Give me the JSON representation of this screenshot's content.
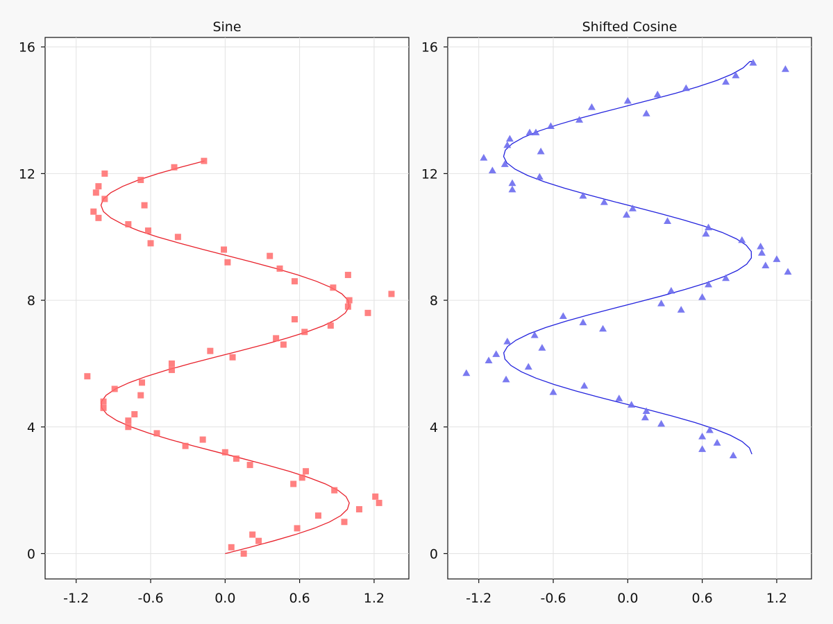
{
  "chart_data": [
    {
      "type": "scatter",
      "title": "Sine",
      "xlabel": "",
      "ylabel": "",
      "xlim": [
        -1.45,
        1.48
      ],
      "ylim": [
        -0.8,
        16.3
      ],
      "xticks": [
        -1.2,
        -0.6,
        0.0,
        0.6,
        1.2
      ],
      "xtick_labels": [
        "-1.2",
        "-0.6",
        "0.0",
        "0.6",
        "1.2"
      ],
      "yticks": [
        0,
        4,
        8,
        12,
        16
      ],
      "ytick_labels": [
        "0",
        "4",
        "8",
        "12",
        "16"
      ],
      "grid": true,
      "line": {
        "name": "sin curve",
        "color": "#e8202a",
        "x": [
          0.0,
          0.199,
          0.389,
          0.565,
          0.717,
          0.841,
          0.932,
          0.985,
          1.0,
          0.974,
          0.909,
          0.808,
          0.675,
          0.516,
          0.335,
          0.141,
          -0.058,
          -0.256,
          -0.443,
          -0.612,
          -0.757,
          -0.872,
          -0.952,
          -0.994,
          -0.996,
          -0.959,
          -0.883,
          -0.772,
          -0.631,
          -0.465,
          -0.28,
          -0.083,
          0.117,
          0.312,
          0.494,
          0.657,
          0.794,
          0.899,
          0.968,
          0.999,
          0.99,
          0.941,
          0.855,
          0.735,
          0.585,
          0.412,
          0.223,
          0.025,
          -0.174,
          -0.365,
          -0.544,
          -0.699,
          -0.825,
          -0.92,
          -0.98,
          -1.0,
          -0.98,
          -0.92,
          -0.824,
          -0.696,
          -0.54,
          -0.36,
          -0.166
        ],
        "y": [
          0.0,
          0.2,
          0.4,
          0.6,
          0.8,
          1.0,
          1.2,
          1.4,
          1.6,
          1.8,
          2.0,
          2.2,
          2.4,
          2.6,
          2.8,
          3.0,
          3.2,
          3.4,
          3.6,
          3.8,
          4.0,
          4.2,
          4.4,
          4.6,
          4.8,
          5.0,
          5.2,
          5.4,
          5.6,
          5.8,
          6.0,
          6.2,
          6.4,
          6.6,
          6.8,
          7.0,
          7.2,
          7.4,
          7.6,
          7.8,
          8.0,
          8.2,
          8.4,
          8.6,
          8.8,
          9.0,
          9.2,
          9.4,
          9.6,
          9.8,
          10.0,
          10.2,
          10.4,
          10.6,
          10.8,
          11.0,
          11.2,
          11.4,
          11.6,
          11.8,
          12.0,
          12.2,
          12.4
        ]
      },
      "points": {
        "name": "sin samples",
        "marker": "square",
        "color": "#ff6b6b",
        "x": [
          0.05,
          0.15,
          0.22,
          0.27,
          0.58,
          0.75,
          0.96,
          1.21,
          1.24,
          1.08,
          0.88,
          0.55,
          0.65,
          0.62,
          0.2,
          0.09,
          0.0,
          -0.18,
          -0.32,
          -0.55,
          -0.78,
          -0.78,
          -0.73,
          -0.98,
          -0.98,
          -0.68,
          -0.67,
          -1.11,
          -0.89,
          -0.43,
          -0.43,
          0.06,
          -0.12,
          0.47,
          0.41,
          0.64,
          0.56,
          0.85,
          1.15,
          0.99,
          1.0,
          1.34,
          0.87,
          0.56,
          0.44,
          0.99,
          0.36,
          0.02,
          -0.01,
          -0.38,
          -0.6,
          -0.62,
          -0.78,
          -1.02,
          -1.06,
          -0.65,
          -0.97,
          -1.04,
          -1.02,
          -0.68,
          -0.97,
          -0.41,
          -0.17
        ],
        "y": [
          0.2,
          0.0,
          0.6,
          0.4,
          0.8,
          1.2,
          1.0,
          1.8,
          1.6,
          1.4,
          2.0,
          2.2,
          2.6,
          2.4,
          2.8,
          3.0,
          3.2,
          3.6,
          3.4,
          3.8,
          4.0,
          4.2,
          4.4,
          4.6,
          4.8,
          5.0,
          5.4,
          5.6,
          5.2,
          5.8,
          6.0,
          6.2,
          6.4,
          6.6,
          6.8,
          7.0,
          7.4,
          7.2,
          7.6,
          7.8,
          8.0,
          8.2,
          8.4,
          8.6,
          9.0,
          8.8,
          9.4,
          9.2,
          9.6,
          10.0,
          9.8,
          10.2,
          10.4,
          10.6,
          10.8,
          11.0,
          11.2,
          11.4,
          11.6,
          11.8,
          12.0,
          12.2,
          12.4
        ]
      }
    },
    {
      "type": "scatter",
      "title": "Shifted Cosine",
      "xlabel": "",
      "ylabel": "",
      "xlim": [
        -1.45,
        1.48
      ],
      "ylim": [
        -0.8,
        16.3
      ],
      "xticks": [
        -1.2,
        -0.6,
        0.0,
        0.6,
        1.2
      ],
      "xtick_labels": [
        "-1.2",
        "-0.6",
        "0.0",
        "0.6",
        "1.2"
      ],
      "yticks": [
        0,
        4,
        8,
        12,
        16
      ],
      "ytick_labels": [
        "0",
        "4",
        "8",
        "12",
        "16"
      ],
      "grid": true,
      "line": {
        "name": "cos curve",
        "color": "#2222dd",
        "x": [
          1.0,
          0.98,
          0.921,
          0.825,
          0.697,
          0.541,
          0.362,
          0.169,
          -0.032,
          -0.232,
          -0.421,
          -0.592,
          -0.739,
          -0.856,
          -0.941,
          -0.989,
          -0.999,
          -0.969,
          -0.9,
          -0.796,
          -0.661,
          -0.498,
          -0.315,
          -0.119,
          0.08,
          0.277,
          0.461,
          0.628,
          0.77,
          0.882,
          0.958,
          0.996,
          0.995,
          0.954,
          0.875,
          0.762,
          0.617,
          0.447,
          0.261,
          0.063,
          -0.136,
          -0.329,
          -0.51,
          -0.671,
          -0.806,
          -0.908,
          -0.974,
          -1.0,
          -0.986,
          -0.932,
          -0.842,
          -0.719,
          -0.567,
          -0.392,
          -0.2,
          -0.002,
          0.196,
          0.388,
          0.563,
          0.716,
          0.839,
          0.93,
          0.984,
          1.0
        ],
        "y": [
          3.14,
          3.34,
          3.54,
          3.74,
          3.94,
          4.14,
          4.34,
          4.54,
          4.74,
          4.94,
          5.14,
          5.34,
          5.54,
          5.74,
          5.94,
          6.14,
          6.34,
          6.54,
          6.74,
          6.94,
          7.14,
          7.34,
          7.54,
          7.74,
          7.94,
          8.14,
          8.34,
          8.54,
          8.74,
          8.94,
          9.14,
          9.34,
          9.54,
          9.74,
          9.94,
          10.14,
          10.34,
          10.54,
          10.74,
          10.94,
          11.14,
          11.34,
          11.54,
          11.74,
          11.94,
          12.14,
          12.34,
          12.54,
          12.74,
          12.94,
          13.14,
          13.34,
          13.54,
          13.74,
          13.94,
          14.14,
          14.34,
          14.54,
          14.74,
          14.94,
          15.14,
          15.34,
          15.54,
          15.54
        ]
      },
      "points": {
        "name": "cos samples",
        "marker": "triangle",
        "color": "#6b6bee",
        "x": [
          0.85,
          0.6,
          0.72,
          0.6,
          0.66,
          0.27,
          0.14,
          0.15,
          0.03,
          -0.07,
          -0.35,
          -0.6,
          -0.98,
          -1.3,
          -0.8,
          -1.12,
          -1.06,
          -0.97,
          -0.69,
          -0.75,
          -0.52,
          -0.36,
          -0.2,
          0.43,
          0.27,
          0.6,
          0.35,
          0.65,
          0.79,
          1.29,
          1.11,
          1.08,
          1.2,
          1.07,
          0.92,
          0.63,
          0.65,
          0.32,
          0.04,
          -0.01,
          -0.19,
          -0.36,
          -0.71,
          -0.93,
          -0.93,
          -0.7,
          -1.09,
          -1.16,
          -0.99,
          -0.97,
          -0.95,
          -0.74,
          -0.79,
          -0.62,
          -0.39,
          -0.29,
          0.15,
          0.0,
          0.24,
          0.47,
          0.79,
          0.87,
          1.01,
          1.27
        ],
        "y": [
          3.1,
          3.3,
          3.5,
          3.7,
          3.9,
          4.1,
          4.3,
          4.5,
          4.7,
          4.9,
          5.3,
          5.1,
          5.5,
          5.7,
          5.9,
          6.1,
          6.3,
          6.7,
          6.5,
          6.9,
          7.5,
          7.3,
          7.1,
          7.7,
          7.9,
          8.1,
          8.3,
          8.5,
          8.7,
          8.9,
          9.1,
          9.5,
          9.3,
          9.7,
          9.9,
          10.1,
          10.3,
          10.5,
          10.9,
          10.7,
          11.1,
          11.3,
          11.9,
          11.5,
          11.7,
          12.7,
          12.1,
          12.5,
          12.3,
          12.9,
          13.1,
          13.3,
          13.3,
          13.5,
          13.7,
          14.1,
          13.9,
          14.3,
          14.5,
          14.7,
          14.9,
          15.1,
          15.5,
          15.3
        ]
      }
    }
  ]
}
